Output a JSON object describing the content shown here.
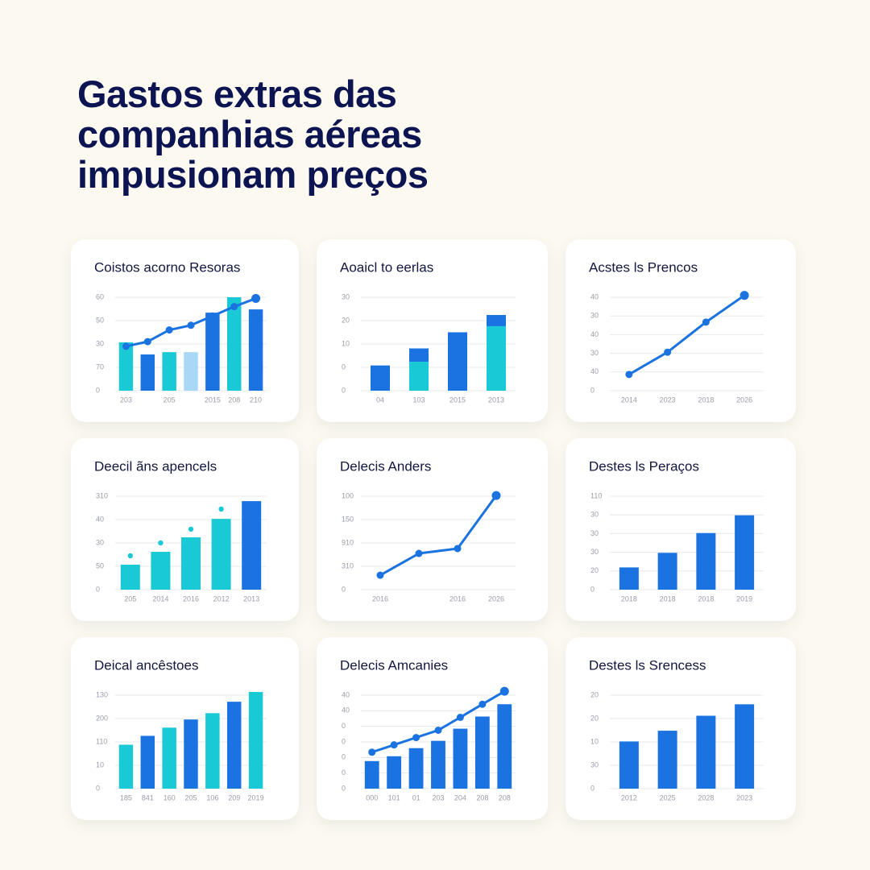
{
  "title": "Gastos extras das companhias aéreas impusionam preços",
  "chart_data": [
    {
      "type": "combo",
      "title": "Coistos acorno Resoras",
      "categories": [
        "203",
        null,
        "205",
        null,
        "2015",
        "208",
        "210"
      ],
      "ylim": [
        0,
        4
      ],
      "yticks": [
        0,
        {
          "value": 1,
          "label": "70"
        },
        {
          "value": 2,
          "label": "30"
        },
        {
          "value": 3,
          "label": "50"
        },
        {
          "value": 4,
          "label": "60"
        }
      ],
      "series": [
        {
          "type": "bar",
          "colors": [
            "#19c9d6",
            "#1a73e0",
            "#19c9d6",
            "#a8d8f6",
            "#1a73e0",
            "#19c9d6",
            "#1a73e0"
          ],
          "values": [
            2.07,
            1.55,
            1.65,
            1.65,
            3.34,
            4.0,
            3.48
          ]
        },
        {
          "type": "line",
          "color": "#1a73e0",
          "values": [
            1.9,
            2.1,
            2.6,
            2.8,
            3.2,
            3.6,
            3.95
          ]
        }
      ]
    },
    {
      "type": "bar",
      "title": "Aoaicl to eerlas",
      "stacked": true,
      "categories": [
        "04",
        "103",
        "2015",
        "2013"
      ],
      "ylim": [
        0,
        4
      ],
      "yticks": [
        0,
        {
          "value": 1,
          "label": "0"
        },
        {
          "value": 2,
          "label": "10"
        },
        {
          "value": 3,
          "label": "20"
        },
        {
          "value": 4,
          "label": "30"
        }
      ],
      "series": [
        {
          "type": "bar",
          "color": "#19c9d6",
          "values": [
            0,
            1.24,
            0,
            2.76
          ]
        },
        {
          "type": "bar",
          "color": "#1a73e0",
          "values": [
            1.08,
            0.57,
            2.5,
            0.48
          ]
        }
      ]
    },
    {
      "type": "line",
      "title": "Acstes ls Prencos",
      "categories": [
        "2014",
        "2023",
        "2018",
        "2026"
      ],
      "ylim": [
        0,
        5
      ],
      "yticks": [
        0,
        {
          "value": 1,
          "label": "40"
        },
        {
          "value": 2,
          "label": "30"
        },
        {
          "value": 3,
          "label": "40"
        },
        {
          "value": 4,
          "label": "30"
        },
        {
          "value": 5,
          "label": "40"
        }
      ],
      "series": [
        {
          "type": "line",
          "color": "#1a73e0",
          "values": [
            0.87,
            2.06,
            3.67,
            5.1
          ]
        }
      ]
    },
    {
      "type": "combo",
      "title": "Deecil ãns apencels",
      "categories": [
        "205",
        "2014",
        "2016",
        "2012",
        "2013"
      ],
      "ylim": [
        0,
        4
      ],
      "yticks": [
        0,
        {
          "value": 1,
          "label": "50"
        },
        {
          "value": 2,
          "label": "30"
        },
        {
          "value": 3,
          "label": "40"
        },
        {
          "value": 4,
          "label": "310"
        }
      ],
      "series": [
        {
          "type": "bar",
          "colors": [
            "#19c9d6",
            "#19c9d6",
            "#19c9d6",
            "#19c9d6",
            "#1a73e0"
          ],
          "values": [
            1.07,
            1.62,
            2.24,
            3.03,
            3.79
          ]
        },
        {
          "type": "dot",
          "color": "#19c9d6",
          "values": [
            1.45,
            2.0,
            2.59,
            3.45,
            null
          ]
        }
      ]
    },
    {
      "type": "line",
      "title": "Delecis Anders",
      "categories": [
        "2016",
        null,
        "2016",
        "2026"
      ],
      "ylim": [
        0,
        4
      ],
      "yticks": [
        0,
        {
          "value": 1,
          "label": "310"
        },
        {
          "value": 2,
          "label": "910"
        },
        {
          "value": 3,
          "label": "150"
        },
        {
          "value": 4,
          "label": "100"
        }
      ],
      "series": [
        {
          "type": "line",
          "color": "#1a73e0",
          "values": [
            0.62,
            1.55,
            1.76,
            4.03
          ]
        }
      ]
    },
    {
      "type": "bar",
      "title": "Destes ls Peraços",
      "categories": [
        "2018",
        "2018",
        "2018",
        "2019"
      ],
      "ylim": [
        0,
        5
      ],
      "yticks": [
        0,
        {
          "value": 1,
          "label": "20"
        },
        {
          "value": 2,
          "label": "30"
        },
        {
          "value": 3,
          "label": "30"
        },
        {
          "value": 4,
          "label": "30"
        },
        {
          "value": 5,
          "label": "110"
        }
      ],
      "series": [
        {
          "type": "bar",
          "color": "#1a73e0",
          "values": [
            1.19,
            1.97,
            3.03,
            3.98
          ]
        }
      ]
    },
    {
      "type": "bar",
      "title": "Deical ancêstoes",
      "categories": [
        "185",
        "841",
        "160",
        "205",
        "106",
        "209",
        "2019"
      ],
      "ylim": [
        0,
        4
      ],
      "yticks": [
        0,
        {
          "value": 1,
          "label": "10"
        },
        {
          "value": 2,
          "label": "110"
        },
        {
          "value": 3,
          "label": "200"
        },
        {
          "value": 4,
          "label": "130"
        }
      ],
      "series": [
        {
          "type": "bar",
          "colors": [
            "#19c9d6",
            "#1a73e0",
            "#19c9d6",
            "#1a73e0",
            "#19c9d6",
            "#1a73e0",
            "#19c9d6"
          ],
          "values": [
            1.88,
            2.26,
            2.61,
            2.96,
            3.23,
            3.72,
            4.14
          ]
        }
      ]
    },
    {
      "type": "combo",
      "title": "Delecis Amcanies",
      "categories": [
        "000",
        "101",
        "01",
        "203",
        "204",
        "208",
        "208"
      ],
      "ylim": [
        0,
        6
      ],
      "yticks": [
        0,
        {
          "value": 1,
          "label": "0"
        },
        {
          "value": 2,
          "label": "0"
        },
        {
          "value": 3,
          "label": "0"
        },
        {
          "value": 4,
          "label": "0"
        },
        {
          "value": 5,
          "label": "40"
        },
        {
          "value": 6,
          "label": "40"
        }
      ],
      "series": [
        {
          "type": "bar",
          "color": "#1a73e0",
          "values": [
            1.77,
            2.08,
            2.6,
            3.07,
            3.85,
            4.63,
            5.42
          ]
        },
        {
          "type": "line",
          "color": "#1a73e0",
          "values": [
            2.34,
            2.81,
            3.28,
            3.75,
            4.58,
            5.42,
            6.25
          ]
        }
      ]
    },
    {
      "type": "bar",
      "title": "Destes ls Srencess",
      "categories": [
        "2012",
        "2025",
        "2028",
        "2023"
      ],
      "ylim": [
        0,
        4
      ],
      "yticks": [
        0,
        {
          "value": 1,
          "label": "30"
        },
        {
          "value": 2,
          "label": "10"
        },
        {
          "value": 3,
          "label": "20"
        },
        {
          "value": 4,
          "label": "20"
        }
      ],
      "series": [
        {
          "type": "bar",
          "color": "#1a73e0",
          "values": [
            2.02,
            2.48,
            3.12,
            3.61
          ]
        }
      ]
    }
  ]
}
